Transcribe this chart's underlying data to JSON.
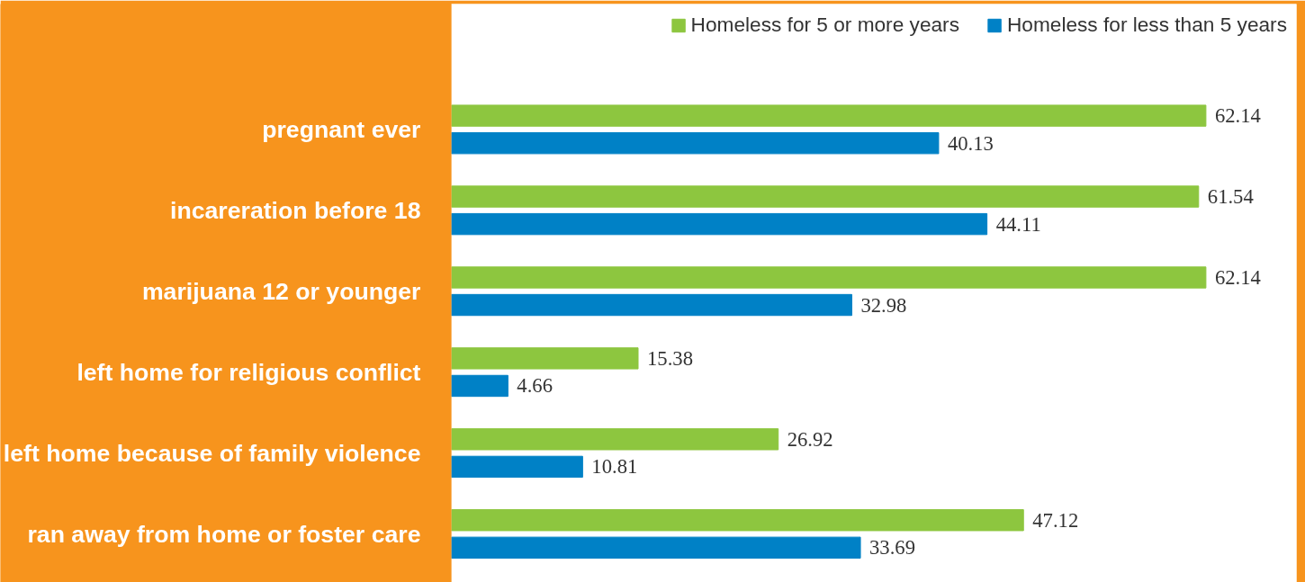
{
  "chart_data": {
    "type": "bar",
    "orientation": "horizontal",
    "categories": [
      "pregnant ever",
      "incareration before 18",
      "marijuana 12 or younger",
      "left home for religious conflict",
      "left home because of family violence",
      "ran away from home or foster care"
    ],
    "series": [
      {
        "name": "Homeless for 5 or more years",
        "color": "#8dc63f",
        "values": [
          62.14,
          61.54,
          62.14,
          15.38,
          26.92,
          47.12
        ]
      },
      {
        "name": "Homeless for less than 5 years",
        "color": "#0081c6",
        "values": [
          40.13,
          44.11,
          32.98,
          4.66,
          10.81,
          33.69
        ]
      }
    ],
    "data_labels": true,
    "legend": "top right",
    "grid": false
  }
}
